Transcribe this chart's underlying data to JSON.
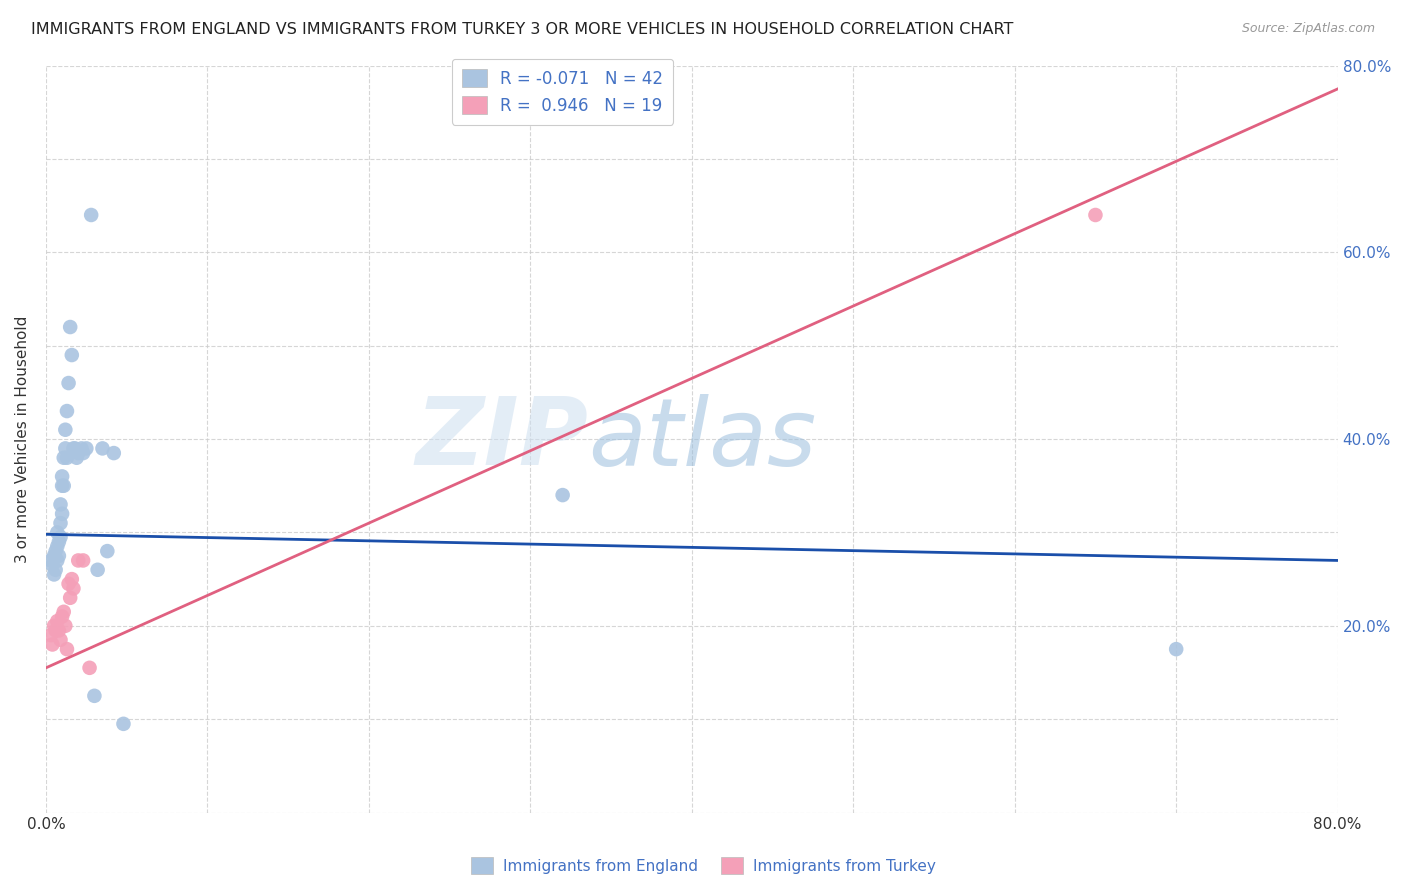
{
  "title": "IMMIGRANTS FROM ENGLAND VS IMMIGRANTS FROM TURKEY 3 OR MORE VEHICLES IN HOUSEHOLD CORRELATION CHART",
  "source": "Source: ZipAtlas.com",
  "ylabel": "3 or more Vehicles in Household",
  "x_min": 0.0,
  "x_max": 0.8,
  "y_min": 0.0,
  "y_max": 0.8,
  "watermark_zip": "ZIP",
  "watermark_atlas": "atlas",
  "england_color": "#aac4e0",
  "turkey_color": "#f4a0b8",
  "england_line_color": "#1a4faa",
  "turkey_line_color": "#e06080",
  "legend_england_label": "R = -0.071   N = 42",
  "legend_turkey_label": "R =  0.946   N = 19",
  "england_line_x0": 0.0,
  "england_line_x1": 0.8,
  "england_line_y0": 0.298,
  "england_line_y1": 0.27,
  "turkey_line_x0": 0.0,
  "turkey_line_x1": 0.8,
  "turkey_line_y0": 0.155,
  "turkey_line_y1": 0.775,
  "england_scatter_x": [
    0.003,
    0.004,
    0.005,
    0.005,
    0.006,
    0.006,
    0.007,
    0.007,
    0.007,
    0.008,
    0.008,
    0.009,
    0.009,
    0.009,
    0.01,
    0.01,
    0.01,
    0.011,
    0.011,
    0.012,
    0.012,
    0.013,
    0.013,
    0.014,
    0.015,
    0.016,
    0.017,
    0.018,
    0.019,
    0.02,
    0.022,
    0.023,
    0.025,
    0.028,
    0.03,
    0.032,
    0.035,
    0.038,
    0.042,
    0.048,
    0.32,
    0.7
  ],
  "england_scatter_y": [
    0.27,
    0.265,
    0.275,
    0.255,
    0.28,
    0.26,
    0.285,
    0.3,
    0.27,
    0.29,
    0.275,
    0.31,
    0.33,
    0.295,
    0.32,
    0.35,
    0.36,
    0.38,
    0.35,
    0.39,
    0.41,
    0.43,
    0.38,
    0.46,
    0.52,
    0.49,
    0.39,
    0.39,
    0.38,
    0.385,
    0.39,
    0.385,
    0.39,
    0.64,
    0.125,
    0.26,
    0.39,
    0.28,
    0.385,
    0.095,
    0.34,
    0.175
  ],
  "turkey_scatter_x": [
    0.003,
    0.004,
    0.005,
    0.006,
    0.007,
    0.008,
    0.009,
    0.01,
    0.011,
    0.012,
    0.013,
    0.014,
    0.015,
    0.016,
    0.017,
    0.02,
    0.023,
    0.027,
    0.65
  ],
  "turkey_scatter_y": [
    0.19,
    0.18,
    0.2,
    0.195,
    0.205,
    0.195,
    0.185,
    0.21,
    0.215,
    0.2,
    0.175,
    0.245,
    0.23,
    0.25,
    0.24,
    0.27,
    0.27,
    0.155,
    0.64
  ],
  "background_color": "#ffffff",
  "grid_color": "#cccccc"
}
